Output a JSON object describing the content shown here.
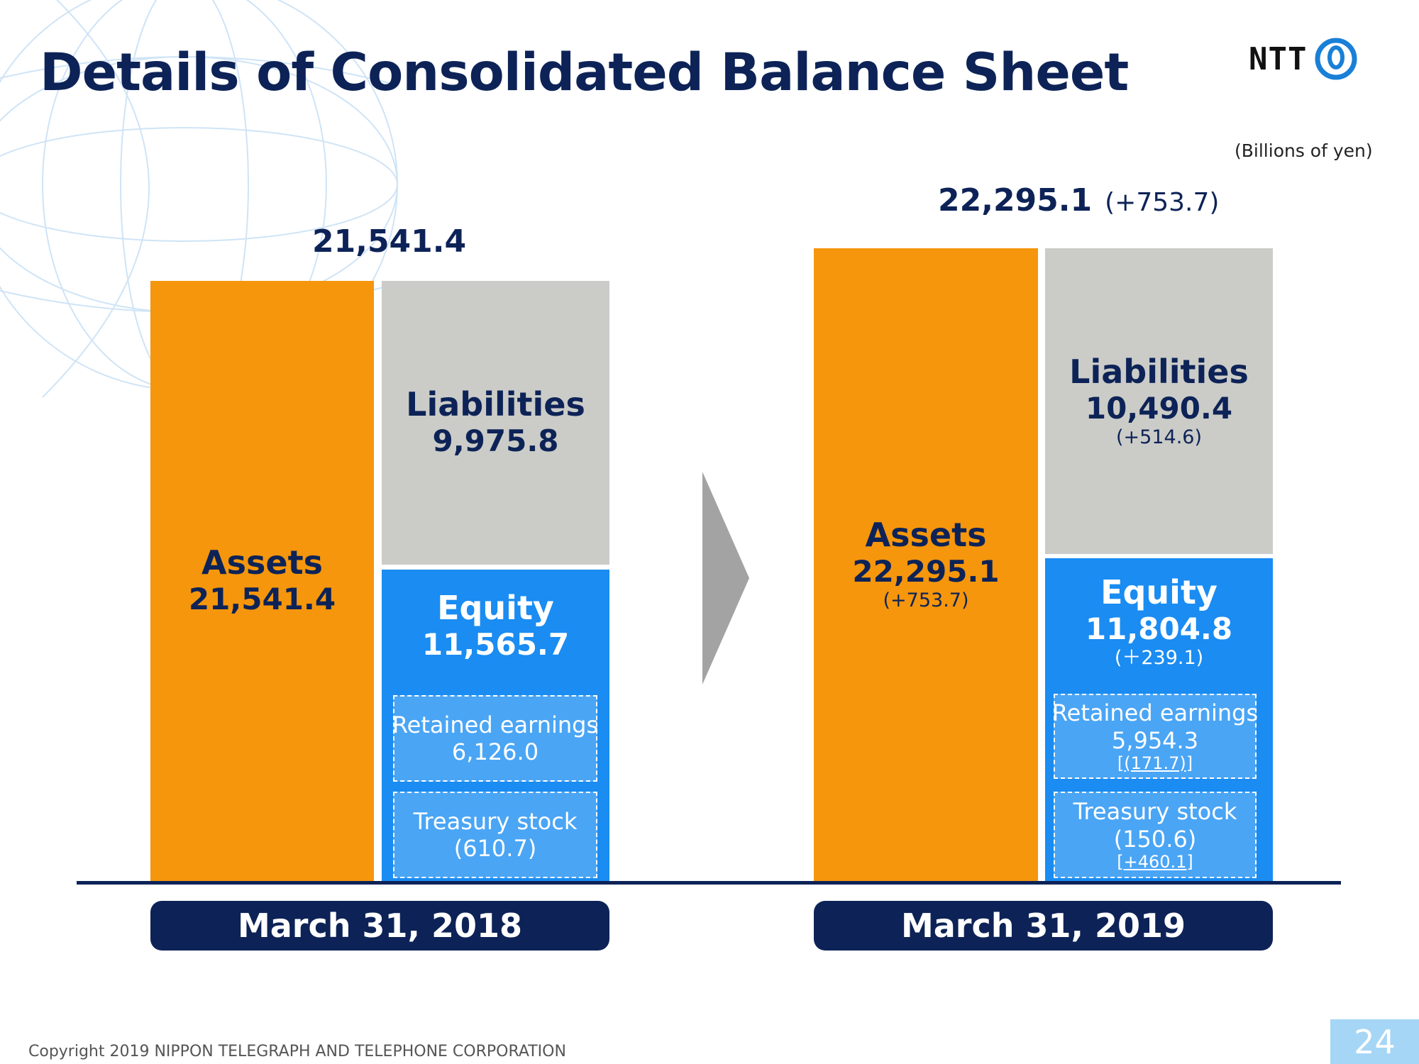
{
  "title": "Details of Consolidated Balance Sheet",
  "logo": {
    "text": "NTT"
  },
  "units": "(Billions of yen)",
  "chart_data": {
    "type": "bar",
    "categories": [
      "March 31, 2018",
      "March 31, 2019"
    ],
    "periods": [
      {
        "date": "March 31, 2018",
        "total": "21,541.4",
        "total_change": "",
        "assets": {
          "label": "Assets",
          "value": "21,541.4",
          "change": ""
        },
        "liabilities": {
          "label": "Liabilities",
          "value": "9,975.8",
          "change": ""
        },
        "equity": {
          "label": "Equity",
          "value": "11,565.7",
          "change": ""
        },
        "retained_earnings": {
          "label": "Retained earnings",
          "value": "6,126.0",
          "change": ""
        },
        "treasury_stock": {
          "label": "Treasury stock",
          "value": "(610.7)",
          "change": ""
        }
      },
      {
        "date": "March 31, 2019",
        "total": "22,295.1",
        "total_change": "(+753.7)",
        "assets": {
          "label": "Assets",
          "value": "22,295.1",
          "change": "(+753.7)"
        },
        "liabilities": {
          "label": "Liabilities",
          "value": "10,490.4",
          "change": "(+514.6)"
        },
        "equity": {
          "label": "Equity",
          "value": "11,804.8",
          "change": "(＋239.1)"
        },
        "retained_earnings": {
          "label": "Retained earnings",
          "value": "5,954.3",
          "change": "[(171.7)]"
        },
        "treasury_stock": {
          "label": "Treasury stock",
          "value": "(150.6)",
          "change": "[+460.1]"
        }
      }
    ],
    "series": [
      {
        "name": "Assets",
        "values": [
          21541.4,
          22295.1
        ]
      },
      {
        "name": "Liabilities",
        "values": [
          9975.8,
          10490.4
        ]
      },
      {
        "name": "Equity",
        "values": [
          11565.7,
          11804.8
        ]
      }
    ],
    "colors": {
      "assets": "#f5960c",
      "liabilities": "#cbccc8",
      "equity": "#1a8cf2",
      "navy": "#0d2357"
    }
  },
  "footer": "Copyright 2019 NIPPON TELEGRAPH AND TELEPHONE CORPORATION",
  "page_number": "24"
}
